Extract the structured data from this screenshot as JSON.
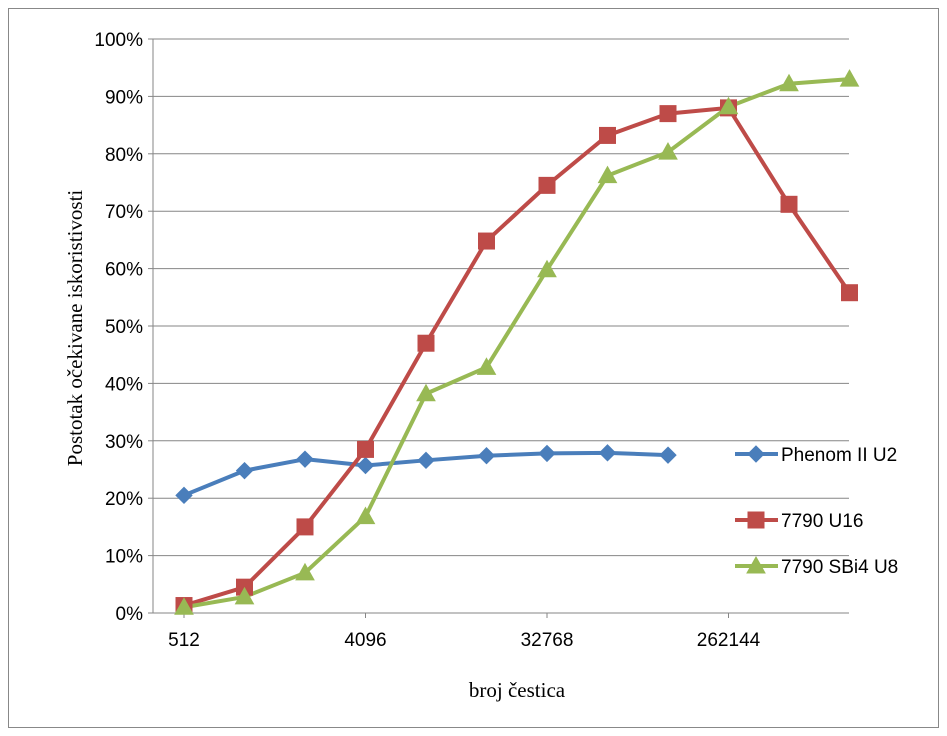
{
  "chart_data": {
    "type": "line",
    "xlabel": "broj čestica",
    "ylabel": "Postotak očekivane iskoristivosti",
    "x_tick_labels": [
      "512",
      "4096",
      "32768",
      "262144"
    ],
    "y_tick_labels": [
      "0%",
      "10%",
      "20%",
      "30%",
      "40%",
      "50%",
      "60%",
      "70%",
      "80%",
      "90%",
      "100%"
    ],
    "x_scale": "log2",
    "x": [
      512,
      1024,
      2048,
      4096,
      8192,
      16384,
      32768,
      65536,
      131072,
      262144,
      524288,
      1048576
    ],
    "ylim": [
      0,
      100
    ],
    "grid": "horizontal",
    "legend_position": "right",
    "series": [
      {
        "name": "Phenom II U2",
        "color": "#4a7ebb",
        "marker": "diamond",
        "values": [
          20.5,
          24.8,
          26.8,
          25.7,
          26.6,
          27.4,
          27.8,
          27.9,
          27.5,
          null,
          null,
          null
        ]
      },
      {
        "name": "7790 U16",
        "color": "#be4b48",
        "marker": "square",
        "values": [
          1.3,
          4.5,
          15.0,
          28.5,
          47.0,
          64.8,
          74.5,
          83.2,
          87.0,
          88.0,
          71.2,
          55.8
        ]
      },
      {
        "name": "7790 SBi4 U8",
        "color": "#98b954",
        "marker": "triangle",
        "values": [
          1.0,
          2.8,
          7.0,
          16.8,
          38.2,
          42.8,
          59.8,
          76.2,
          80.3,
          88.2,
          92.2,
          93.0
        ]
      }
    ]
  }
}
